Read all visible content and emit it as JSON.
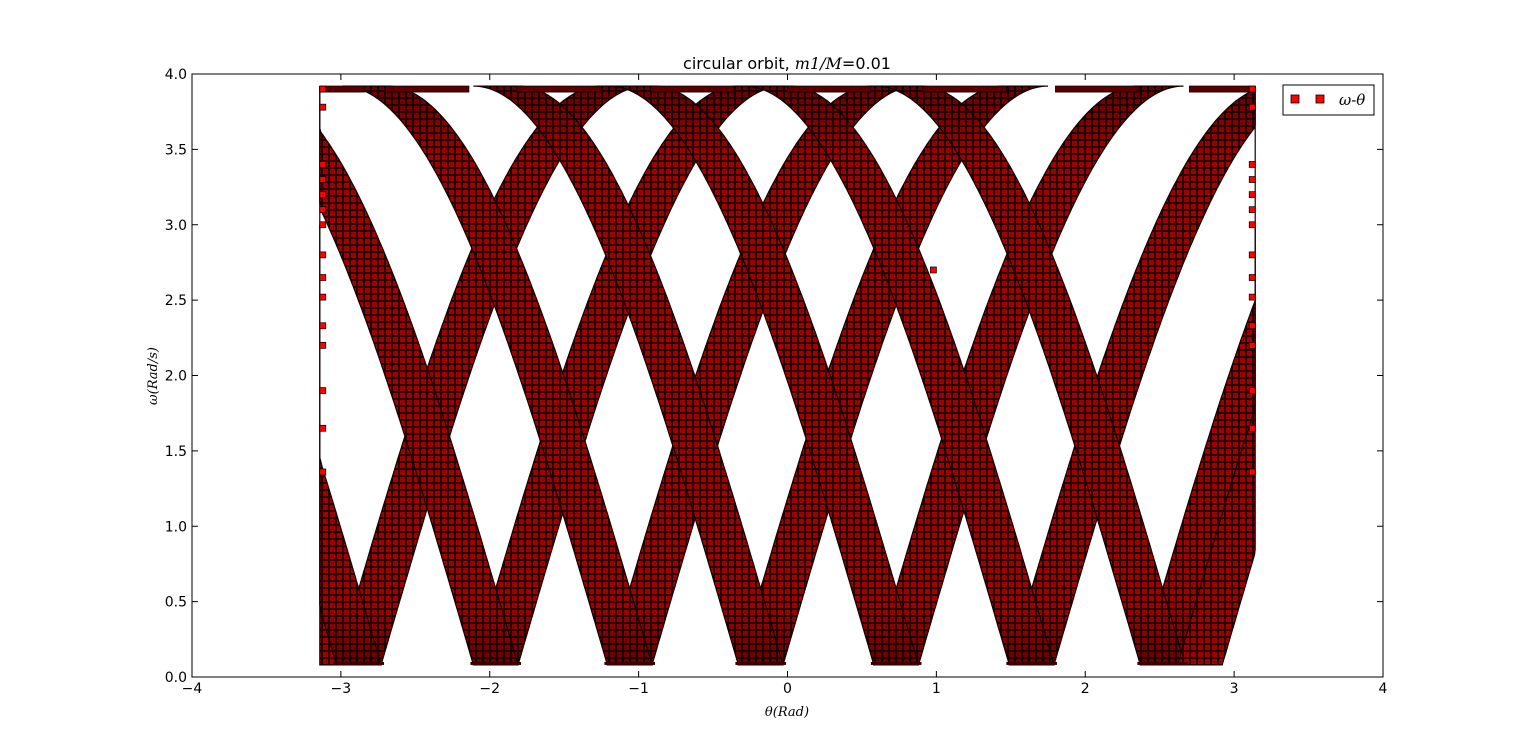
{
  "chart_data": {
    "type": "scatter",
    "title": {
      "prefix": "circular orbit, ",
      "math": "m1/M",
      "equals": "=",
      "value": "0.01"
    },
    "xlabel": "θ(Rad)",
    "ylabel": "ω(Rad/s)",
    "xlim": [
      -4,
      4
    ],
    "ylim": [
      0.0,
      4.0
    ],
    "xticks": [
      -4,
      -3,
      -2,
      -1,
      0,
      1,
      2,
      3,
      4
    ],
    "yticks": [
      0.0,
      0.5,
      1.0,
      1.5,
      2.0,
      2.5,
      3.0,
      3.5,
      4.0
    ],
    "xtick_labels": [
      "−4",
      "−3",
      "−2",
      "−1",
      "0",
      "1",
      "2",
      "3",
      "4"
    ],
    "ytick_labels": [
      "0.0",
      "0.5",
      "1.0",
      "1.5",
      "2.0",
      "2.5",
      "3.0",
      "3.5",
      "4.0"
    ],
    "grid": false,
    "legend_position": "top-right",
    "series": [
      {
        "name": "ω-θ",
        "marker": "square",
        "color": "#ff0000",
        "edge_color": "#000000",
        "theta_range": [
          -3.14159,
          3.14159
        ],
        "omega_range": [
          0.08,
          3.92
        ],
        "bottom_minima_theta": [
          -2.88,
          -1.96,
          -1.06,
          -0.18,
          0.73,
          1.64,
          2.52
        ],
        "top_maxima_theta": [
          -3.12,
          -2.42,
          -1.54,
          -0.64,
          0.28,
          1.19,
          2.08,
          2.98
        ],
        "band_width_theta": 0.3
      }
    ]
  }
}
